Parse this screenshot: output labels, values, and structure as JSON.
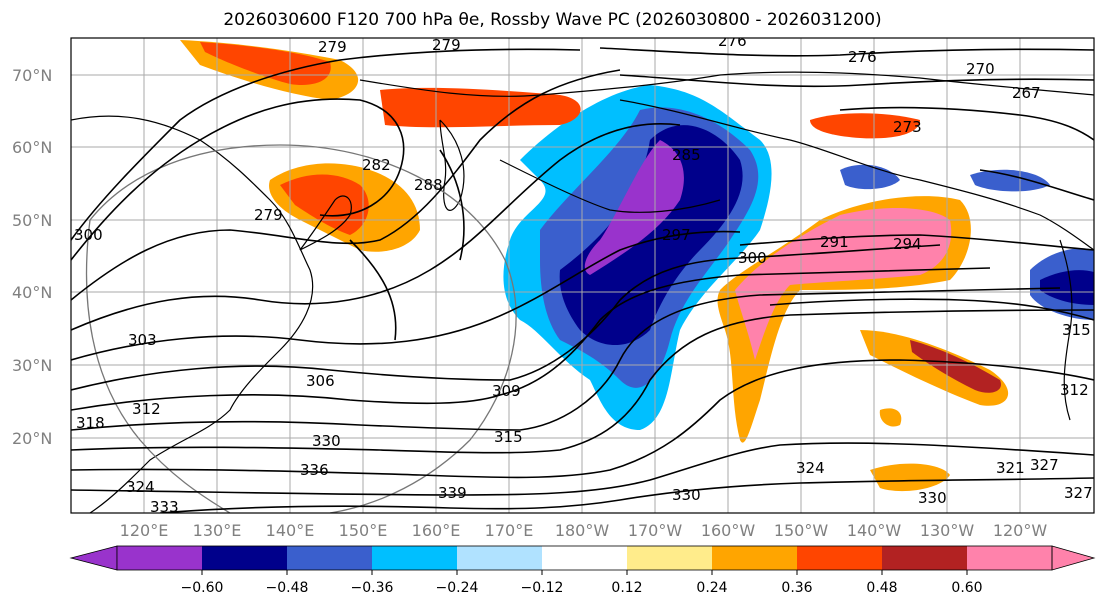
{
  "title": "2026030600 F120 700 hPa θe, Rossby Wave PC (2026030800 - 2026031200)",
  "latitude_labels": [
    "70°N",
    "60°N",
    "50°N",
    "40°N",
    "30°N",
    "20°N"
  ],
  "longitude_labels": [
    "120°E",
    "130°E",
    "140°E",
    "150°E",
    "160°E",
    "170°E",
    "180°W",
    "170°W",
    "160°W",
    "150°W",
    "140°W",
    "130°W",
    "120°W"
  ],
  "contour_labels": [
    "279",
    "279",
    "276",
    "276",
    "270",
    "267",
    "273",
    "282",
    "279",
    "288",
    "285",
    "297",
    "291",
    "294",
    "300",
    "300",
    "303",
    "306",
    "309",
    "312",
    "318",
    "315",
    "330",
    "336",
    "339",
    "330",
    "324",
    "321",
    "327",
    "327",
    "330",
    "333",
    "324",
    "315",
    "312"
  ],
  "colorbar": {
    "tick_labels": [
      "−0.60",
      "−0.48",
      "−0.36",
      "−0.24",
      "−0.12",
      "0.12",
      "0.24",
      "0.36",
      "0.48",
      "0.60"
    ],
    "colors": [
      "#9933cc",
      "#00008b",
      "#3a5fcd",
      "#00bfff",
      "#b0e2ff",
      "#ffffff",
      "#ffec8b",
      "#ffa500",
      "#ff4500",
      "#b22222",
      "#ff82ab"
    ]
  },
  "colors": {
    "neg_strong": "#00008b",
    "neg_purple": "#9933cc",
    "neg_mid": "#3a5fcd",
    "neg_light": "#00bfff",
    "pos_light": "#ffec8b",
    "pos_mid": "#ffa500",
    "pos_strong": "#ff4500",
    "pos_red": "#b22222",
    "pos_pink": "#ff82ab"
  }
}
